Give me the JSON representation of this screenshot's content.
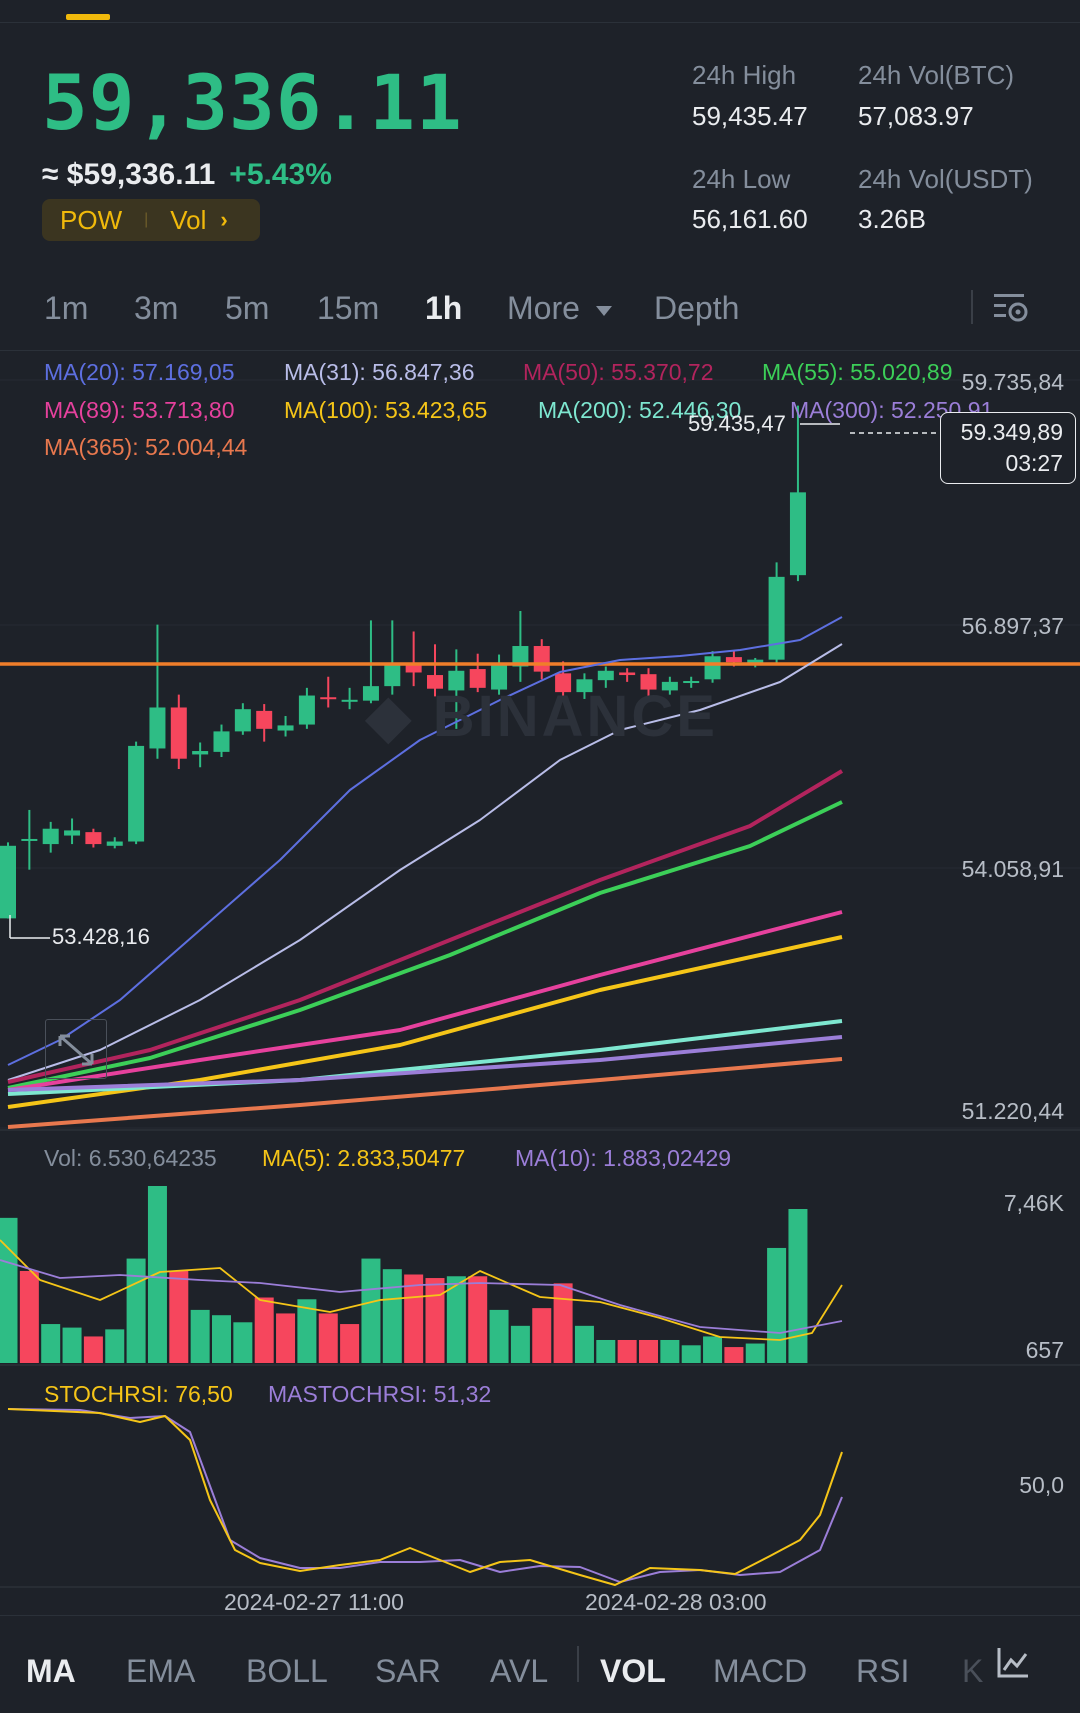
{
  "header": {
    "price": "59,336.11",
    "approx": "≈ $59,336.11",
    "change": "+5.43%",
    "tag1": "POW",
    "tag2": "Vol",
    "tag_chevron": "›"
  },
  "stats": {
    "high_label": "24h High",
    "high_value": "59,435.47",
    "low_label": "24h Low",
    "low_value": "56,161.60",
    "volbtc_label": "24h Vol(BTC)",
    "volbtc_value": "57,083.97",
    "volusdt_label": "24h Vol(USDT)",
    "volusdt_value": "3.26B"
  },
  "timeframes": [
    "1m",
    "3m",
    "5m",
    "15m",
    "1h",
    "More",
    "Depth"
  ],
  "active_timeframe": "1h",
  "ma_labels": [
    {
      "text": "MA(20): 57.169,05",
      "color": "#5d6fe0"
    },
    {
      "text": "MA(31): 56.847,36",
      "color": "#b9bde8"
    },
    {
      "text": "MA(50): 55.370,72",
      "color": "#b2245d"
    },
    {
      "text": "MA(55): 55.020,89",
      "color": "#3ccf58"
    },
    {
      "text": "MA(89): 53.713,80",
      "color": "#e6419d"
    },
    {
      "text": "MA(100): 53.423,65",
      "color": "#f5c518"
    },
    {
      "text": "MA(200): 52.446,30",
      "color": "#7ee7d0"
    },
    {
      "text": "MA(300): 52.250,91",
      "color": "#9b7ed8"
    },
    {
      "text": "MA(365): 52.004,44",
      "color": "#e8784e"
    }
  ],
  "price_axis": [
    "59.735,84",
    "56.897,37",
    "54.058,91",
    "51.220,44"
  ],
  "high_marker": "59.435,47",
  "low_marker": "53.428,16",
  "current_box": {
    "price": "59.349,89",
    "countdown": "03:27"
  },
  "watermark": "BINANCE",
  "volume": {
    "labels": [
      {
        "text": "Vol: 6.530,64235",
        "color": "#848e9c"
      },
      {
        "text": "MA(5): 2.833,50477",
        "color": "#f5c518"
      },
      {
        "text": "MA(10): 1.883,02429",
        "color": "#9b7ed8"
      }
    ],
    "axis_top": "7,46K",
    "axis_bottom": "657"
  },
  "stochrsi": {
    "label1": "STOCHRSI: 76,50",
    "label2": "MASTOCHRSI: 51,32",
    "axis": "50,0"
  },
  "time_axis": [
    "2024-02-27 11:00",
    "2024-02-28 03:00"
  ],
  "bottom_tabs": [
    "MA",
    "EMA",
    "BOLL",
    "SAR",
    "AVL",
    "VOL",
    "MACD",
    "RSI",
    "K"
  ],
  "active_bottom_tabs": [
    "MA",
    "VOL"
  ],
  "colors": {
    "up": "#2ebd85",
    "down": "#f6465d",
    "accent": "#f0b90b",
    "hline": "#f07e2a"
  }
}
